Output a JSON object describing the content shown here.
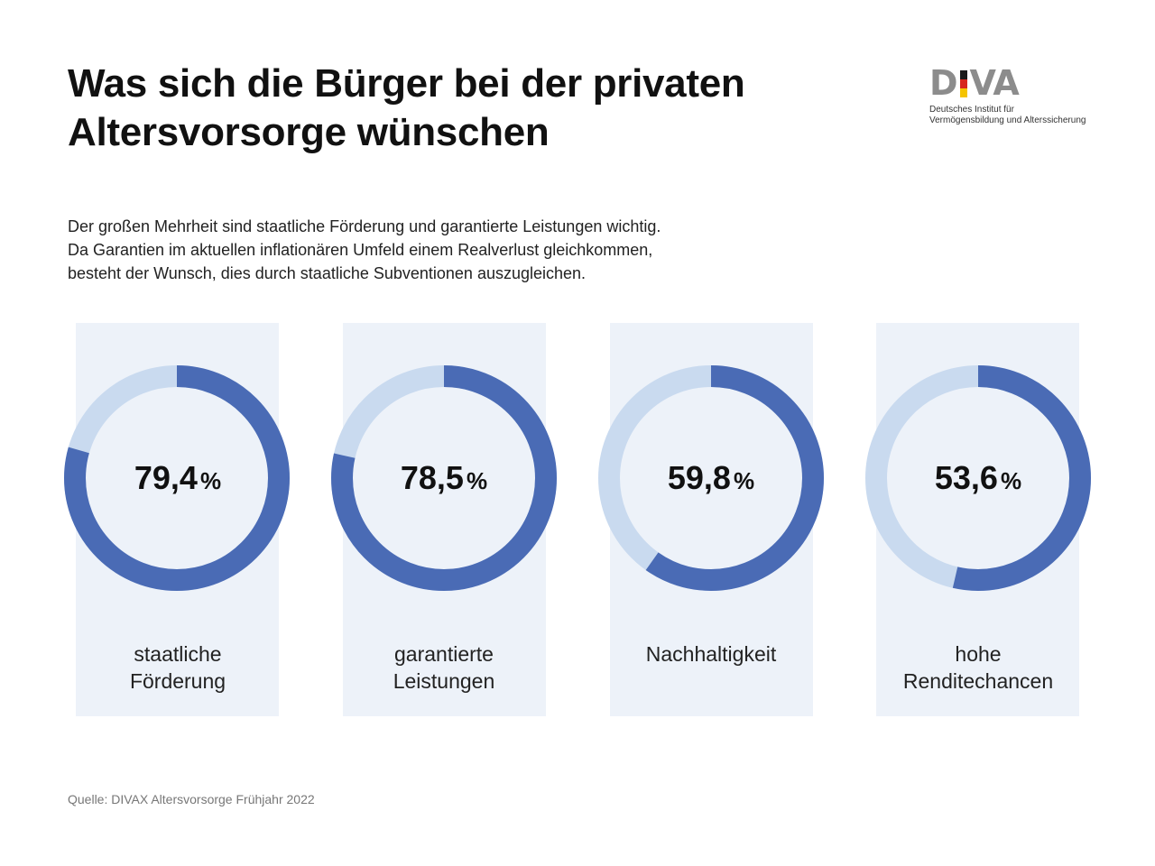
{
  "header": {
    "title_lines": [
      "Was sich die Bürger bei der privaten",
      "Altersvorsorge wünschen"
    ],
    "subtitle_lines": [
      "Der großen Mehrheit sind staatliche Förderung und garantierte Leistungen wichtig.",
      "Da Garantien im aktuellen inflationären Umfeld einem Realverlust gleichkommen,",
      "besteht der Wunsch, dies durch staatliche Subventionen auszugleichen."
    ]
  },
  "logo": {
    "letters_left": "D",
    "letters_right": "VA",
    "sub_lines": [
      "Deutsches Institut für",
      "Vermögensbildung und Alterssicherung"
    ],
    "flag_colors": [
      "#1a1a1a",
      "#d7261e",
      "#f5c400"
    ]
  },
  "chart_data": {
    "type": "donut",
    "unit": "%",
    "items": [
      {
        "value": 79.4,
        "display": "79,4",
        "label_lines": [
          "staatliche",
          "Förderung"
        ]
      },
      {
        "value": 78.5,
        "display": "78,5",
        "label_lines": [
          "garantierte",
          "Leistungen"
        ]
      },
      {
        "value": 59.8,
        "display": "59,8",
        "label_lines": [
          "Nachhaltigkeit"
        ]
      },
      {
        "value": 53.6,
        "display": "53,6",
        "label_lines": [
          "hohe",
          "Renditechancen"
        ]
      }
    ],
    "max": 100
  },
  "colors": {
    "fill": "#4a6bb5",
    "track": "#c9daef",
    "panel": "#edf2f9"
  },
  "footer": {
    "source": "Quelle: DIVAX Altersvorsorge Frühjahr 2022"
  }
}
